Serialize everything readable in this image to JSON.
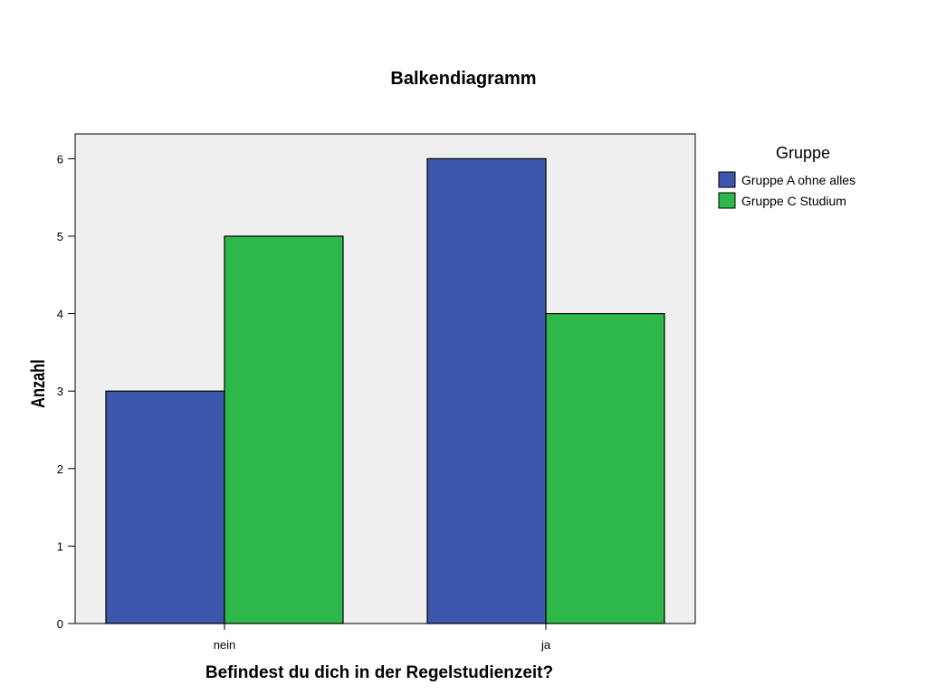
{
  "chart_data": {
    "type": "bar",
    "title": "Balkendiagramm",
    "xlabel": "Befindest du dich in der Regelstudienzeit?",
    "ylabel": "Anzahl",
    "categories": [
      "nein",
      "ja"
    ],
    "series": [
      {
        "name": "Gruppe A ohne alles",
        "values": [
          3,
          6
        ],
        "color": "#3b56ab"
      },
      {
        "name": "Gruppe C Studium",
        "values": [
          5,
          4
        ],
        "color": "#2fb84a"
      }
    ],
    "ylim": [
      0,
      6.32
    ],
    "yticks": [
      "0",
      "1",
      "2",
      "3",
      "4",
      "5",
      "6"
    ],
    "legend": {
      "title": "Gruppe",
      "position": "right"
    },
    "plot_background": "#efefef",
    "grid": false
  }
}
